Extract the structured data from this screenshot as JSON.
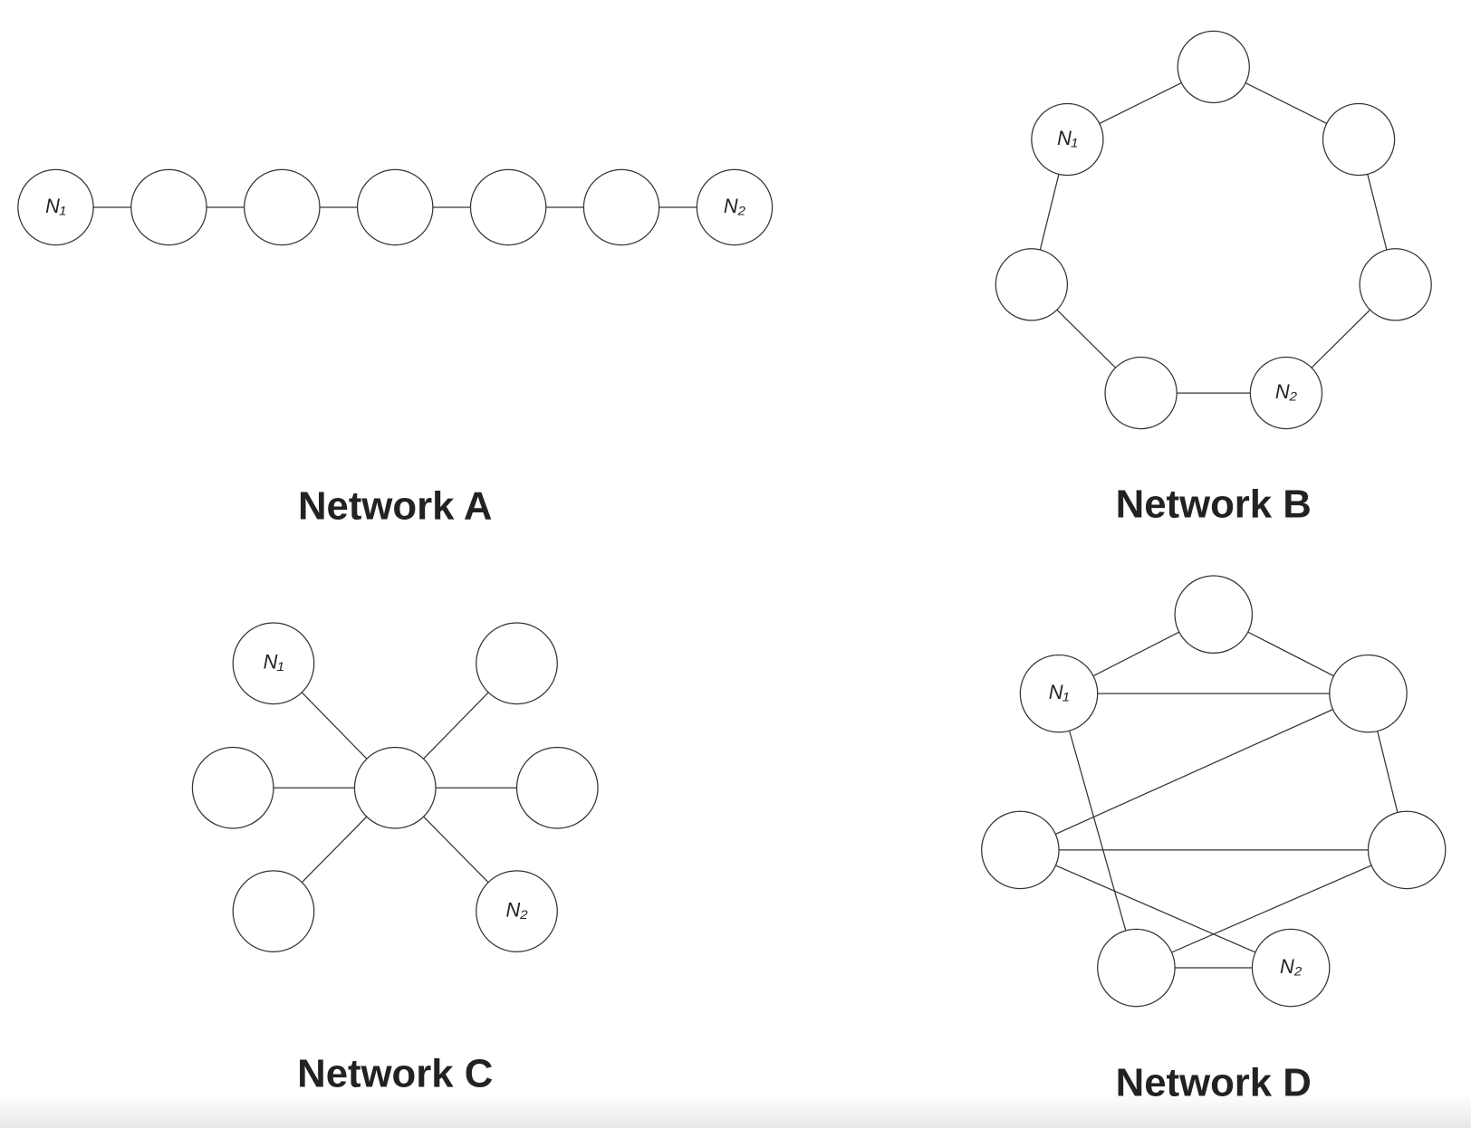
{
  "networks": [
    {
      "title": "Network A",
      "labels": [
        "N₁",
        "N₂"
      ]
    },
    {
      "title": "Network B",
      "labels": [
        "N₁",
        "N₂"
      ]
    },
    {
      "title": "Network C",
      "labels": [
        "N₁",
        "N₂"
      ]
    },
    {
      "title": "Network D",
      "labels": [
        "N₁",
        "N₂"
      ]
    }
  ]
}
